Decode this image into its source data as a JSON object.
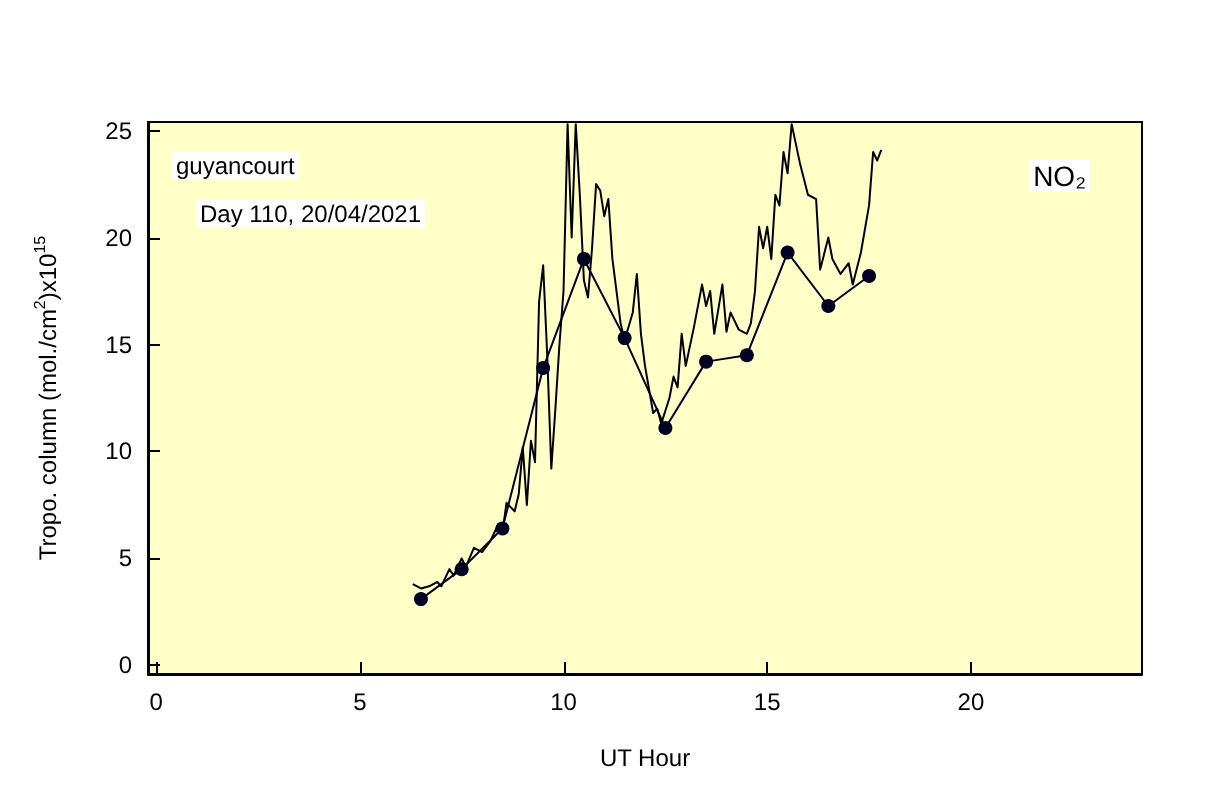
{
  "chart_data": {
    "type": "line",
    "xlabel": "UT Hour",
    "ylabel": "Tropo. column (mol./cm$^{2}$)x10$^{15}$",
    "annotations": [
      "guyancourt",
      "Day 110, 20/04/2021",
      "NO₂"
    ],
    "xlim": [
      -0.2,
      24.2
    ],
    "xticks": [
      0,
      5,
      10,
      15,
      20
    ],
    "ylim": [
      -0.4,
      25.4
    ],
    "yticks": [
      0,
      5,
      10,
      15,
      20,
      25
    ],
    "grid": false,
    "series": [
      {
        "color": "#000000",
        "marker": "none",
        "x": [
          6.3,
          6.5,
          6.7,
          6.9,
          7.0,
          7.2,
          7.3,
          7.5,
          7.6,
          7.8,
          8.0,
          8.2,
          8.4,
          8.5,
          8.6,
          8.8,
          8.9,
          9.0,
          9.1,
          9.2,
          9.3,
          9.4,
          9.5,
          9.6,
          9.7,
          9.8,
          9.9,
          10.0,
          10.1,
          10.2,
          10.3,
          10.4,
          10.5,
          10.6,
          10.7,
          10.8,
          10.9,
          11.0,
          11.1,
          11.2,
          11.4,
          11.5,
          11.7,
          11.8,
          11.9,
          12.0,
          12.2,
          12.3,
          12.4,
          12.6,
          12.7,
          12.8,
          12.9,
          13.0,
          13.2,
          13.4,
          13.5,
          13.6,
          13.7,
          13.9,
          14.0,
          14.1,
          14.3,
          14.5,
          14.6,
          14.7,
          14.8,
          14.9,
          15.0,
          15.1,
          15.2,
          15.3,
          15.4,
          15.5,
          15.6,
          15.8,
          16.0,
          16.2,
          16.3,
          16.5,
          16.6,
          16.8,
          17.0,
          17.1,
          17.3,
          17.5,
          17.6,
          17.7,
          17.8
        ],
        "values": [
          3.8,
          3.6,
          3.7,
          3.9,
          3.7,
          4.5,
          4.2,
          5.0,
          4.6,
          5.5,
          5.3,
          5.8,
          6.6,
          6.2,
          7.6,
          7.2,
          8.0,
          10.2,
          7.5,
          10.5,
          9.5,
          17.0,
          18.7,
          14.5,
          9.2,
          12.0,
          15.0,
          17.5,
          25.3,
          20.0,
          25.3,
          22.0,
          18.0,
          17.2,
          19.5,
          22.5,
          22.2,
          21.0,
          21.8,
          19.0,
          16.0,
          15.2,
          16.5,
          18.3,
          15.5,
          14.0,
          11.8,
          12.0,
          11.3,
          12.5,
          13.5,
          13.0,
          15.5,
          14.0,
          15.8,
          17.8,
          16.8,
          17.5,
          15.5,
          17.8,
          15.6,
          16.5,
          15.7,
          15.5,
          16.0,
          17.5,
          20.5,
          19.5,
          20.5,
          19.0,
          22.0,
          21.5,
          24.0,
          23.0,
          25.3,
          23.5,
          22.0,
          21.8,
          18.5,
          20.0,
          19.0,
          18.3,
          18.8,
          17.8,
          19.3,
          21.5,
          24.0,
          23.6,
          24.1
        ]
      },
      {
        "color": "#000022",
        "marker": "circle",
        "x": [
          6.5,
          7.5,
          8.5,
          9.5,
          10.5,
          11.5,
          12.5,
          13.5,
          14.5,
          15.5,
          16.5,
          17.5
        ],
        "values": [
          3.1,
          4.5,
          6.4,
          13.9,
          19.0,
          15.3,
          11.1,
          14.2,
          14.5,
          19.3,
          16.8,
          18.2
        ]
      }
    ]
  }
}
